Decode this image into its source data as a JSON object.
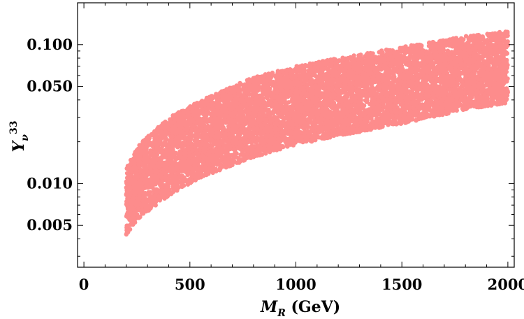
{
  "chart_data": {
    "type": "scatter",
    "title": "",
    "xlabel": {
      "main": "M",
      "sub": "R",
      "unit": " (GeV)"
    },
    "ylabel": {
      "main": "Y",
      "sub": "ν",
      "sup": "33"
    },
    "x_scale": "linear",
    "y_scale": "log",
    "xlim": [
      -30,
      2030
    ],
    "ylim": [
      0.0025,
      0.2
    ],
    "x_ticks": [
      0,
      500,
      1000,
      1500,
      2000
    ],
    "x_tick_labels": [
      "0",
      "500",
      "1000",
      "1500",
      "2000"
    ],
    "y_ticks": [
      0.005,
      0.01,
      0.05,
      0.1
    ],
    "y_tick_labels": [
      "0.005",
      "0.010",
      "0.050",
      "0.100"
    ],
    "grid": false,
    "legend": "none",
    "point_color": "#fd8c8c",
    "series": [
      {
        "x_range": [
          200,
          2000
        ],
        "lower_bound": {
          "x": [
            200,
            250,
            300,
            400,
            500,
            600,
            800,
            1000,
            1200,
            1500,
            1800,
            2000
          ],
          "y": [
            0.0042,
            0.0055,
            0.0063,
            0.0082,
            0.01,
            0.0118,
            0.0155,
            0.019,
            0.022,
            0.027,
            0.034,
            0.038
          ]
        },
        "upper_bound": {
          "x": [
            200,
            250,
            300,
            400,
            500,
            600,
            800,
            1000,
            1200,
            1500,
            1800,
            2000
          ],
          "y": [
            0.013,
            0.018,
            0.022,
            0.03,
            0.036,
            0.043,
            0.058,
            0.07,
            0.08,
            0.096,
            0.115,
            0.125
          ]
        }
      }
    ]
  }
}
